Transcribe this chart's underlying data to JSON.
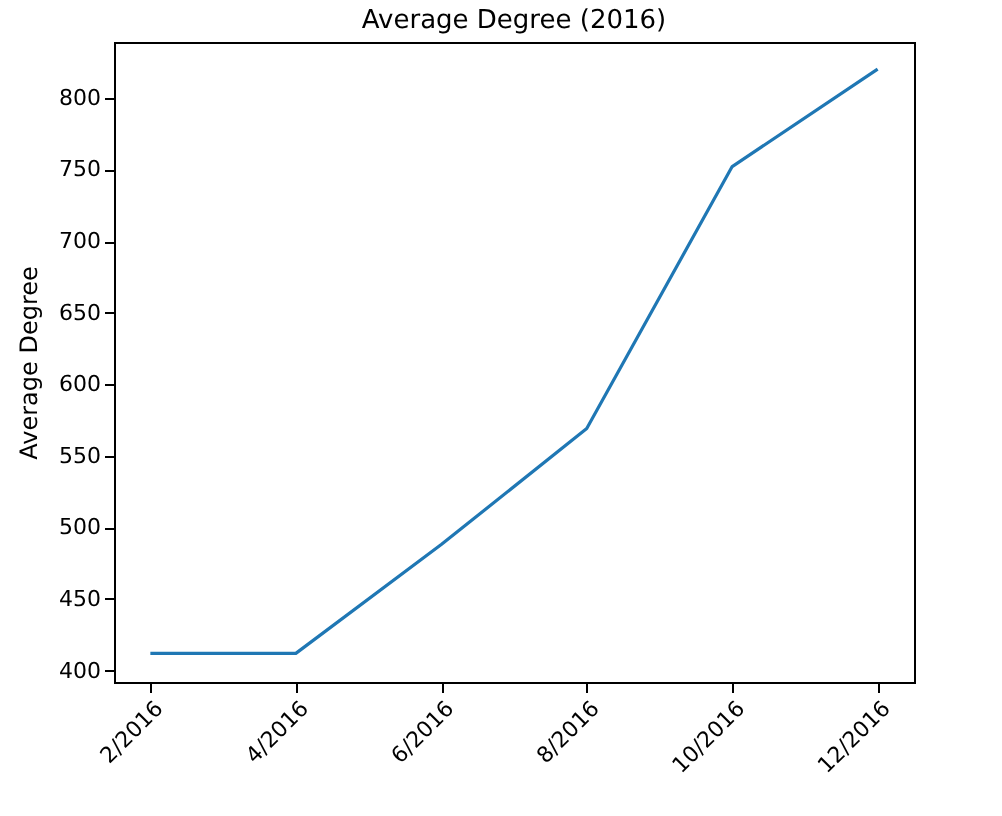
{
  "chart_data": {
    "type": "line",
    "title": "Average Degree (2016)",
    "ylabel": "Average Degree",
    "categories": [
      "2/2016",
      "4/2016",
      "6/2016",
      "8/2016",
      "10/2016",
      "12/2016"
    ],
    "series": [
      {
        "color": "#1f77b4",
        "values": [
          412,
          412,
          488,
          569,
          752,
          820
        ]
      }
    ],
    "ylim": [
      392,
      839
    ],
    "yticks": [
      400,
      450,
      500,
      550,
      600,
      650,
      700,
      750,
      800
    ],
    "grid": false
  }
}
